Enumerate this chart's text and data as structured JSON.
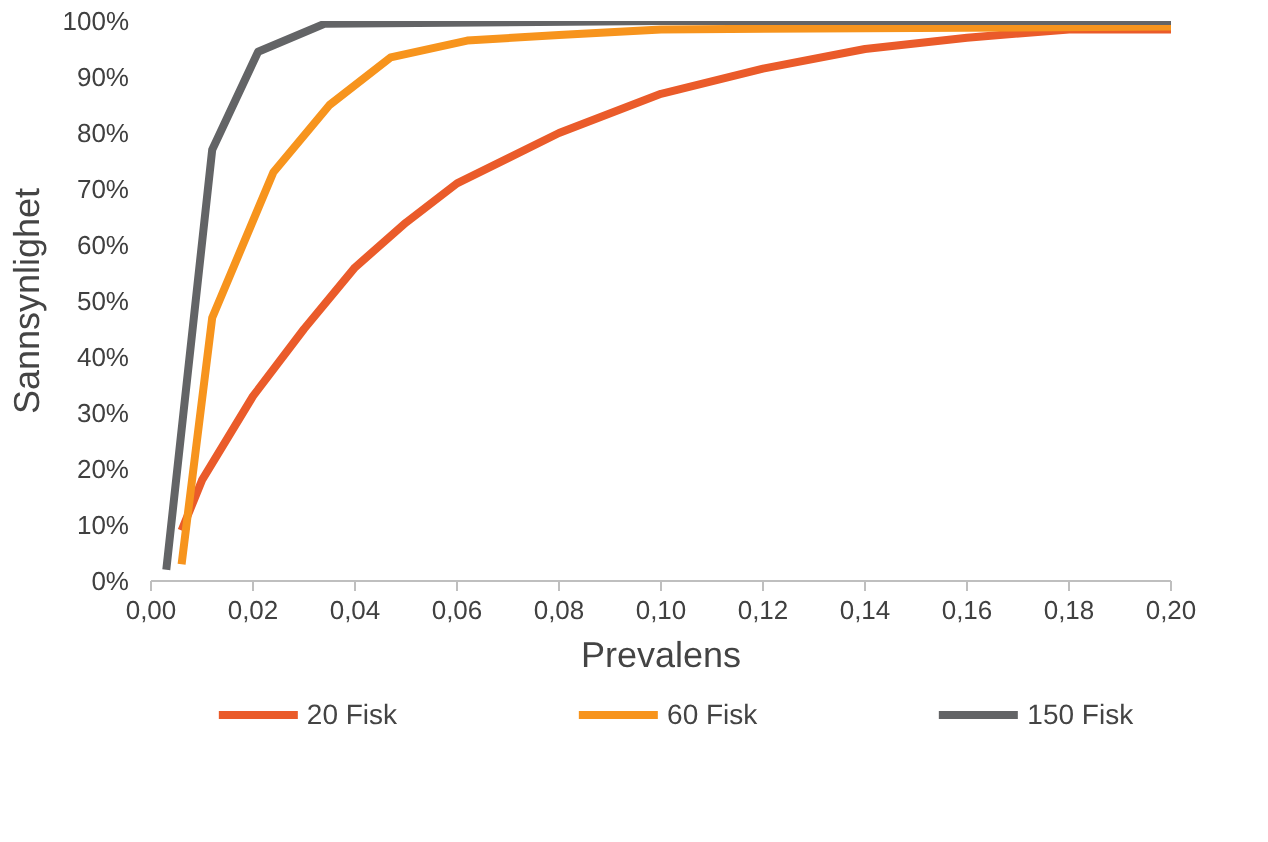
{
  "chart_data": {
    "type": "line",
    "xlabel": "Prevalens",
    "ylabel": "Sannsynlighet",
    "xlim": [
      0,
      0.2
    ],
    "ylim": [
      0,
      100
    ],
    "xticks": [
      {
        "value": 0,
        "label": "0,00"
      },
      {
        "value": 0.02,
        "label": "0,02"
      },
      {
        "value": 0.04,
        "label": "0,04"
      },
      {
        "value": 0.06,
        "label": "0,06"
      },
      {
        "value": 0.08,
        "label": "0,08"
      },
      {
        "value": 0.1,
        "label": "0,10"
      },
      {
        "value": 0.12,
        "label": "0,12"
      },
      {
        "value": 0.14,
        "label": "0,14"
      },
      {
        "value": 0.16,
        "label": "0,16"
      },
      {
        "value": 0.18,
        "label": "0,18"
      },
      {
        "value": 0.2,
        "label": "0,20"
      }
    ],
    "yticks": [
      {
        "value": 0,
        "label": "0%"
      },
      {
        "value": 10,
        "label": "10%"
      },
      {
        "value": 20,
        "label": "20%"
      },
      {
        "value": 30,
        "label": "30%"
      },
      {
        "value": 40,
        "label": "40%"
      },
      {
        "value": 50,
        "label": "50%"
      },
      {
        "value": 60,
        "label": "60%"
      },
      {
        "value": 70,
        "label": "70%"
      },
      {
        "value": 80,
        "label": "80%"
      },
      {
        "value": 90,
        "label": "90%"
      },
      {
        "value": 100,
        "label": "100%"
      }
    ],
    "grid": false,
    "legend": "bottom",
    "line_style": "solid",
    "marker": "none",
    "series": [
      {
        "name": "20 Fisk",
        "color": "#ea5b2a",
        "x": [
          0.006,
          0.01,
          0.02,
          0.03,
          0.04,
          0.05,
          0.06,
          0.08,
          0.1,
          0.12,
          0.14,
          0.16,
          0.18,
          0.2
        ],
        "values": [
          9,
          18,
          33,
          45,
          56,
          64,
          71,
          80,
          87,
          91.5,
          95,
          97,
          98.5,
          98.5
        ]
      },
      {
        "name": "60 Fisk",
        "color": "#f7941d",
        "x": [
          0.006,
          0.012,
          0.024,
          0.035,
          0.047,
          0.062,
          0.08,
          0.1,
          0.2
        ],
        "values": [
          3,
          47,
          73,
          85,
          93.5,
          96.5,
          97.5,
          98.5,
          99
        ]
      },
      {
        "name": "150 Fisk",
        "color": "#636466",
        "x": [
          0.003,
          0.012,
          0.021,
          0.034,
          0.1,
          0.2
        ],
        "values": [
          2,
          77,
          94.5,
          99.5,
          100,
          100
        ]
      }
    ]
  }
}
